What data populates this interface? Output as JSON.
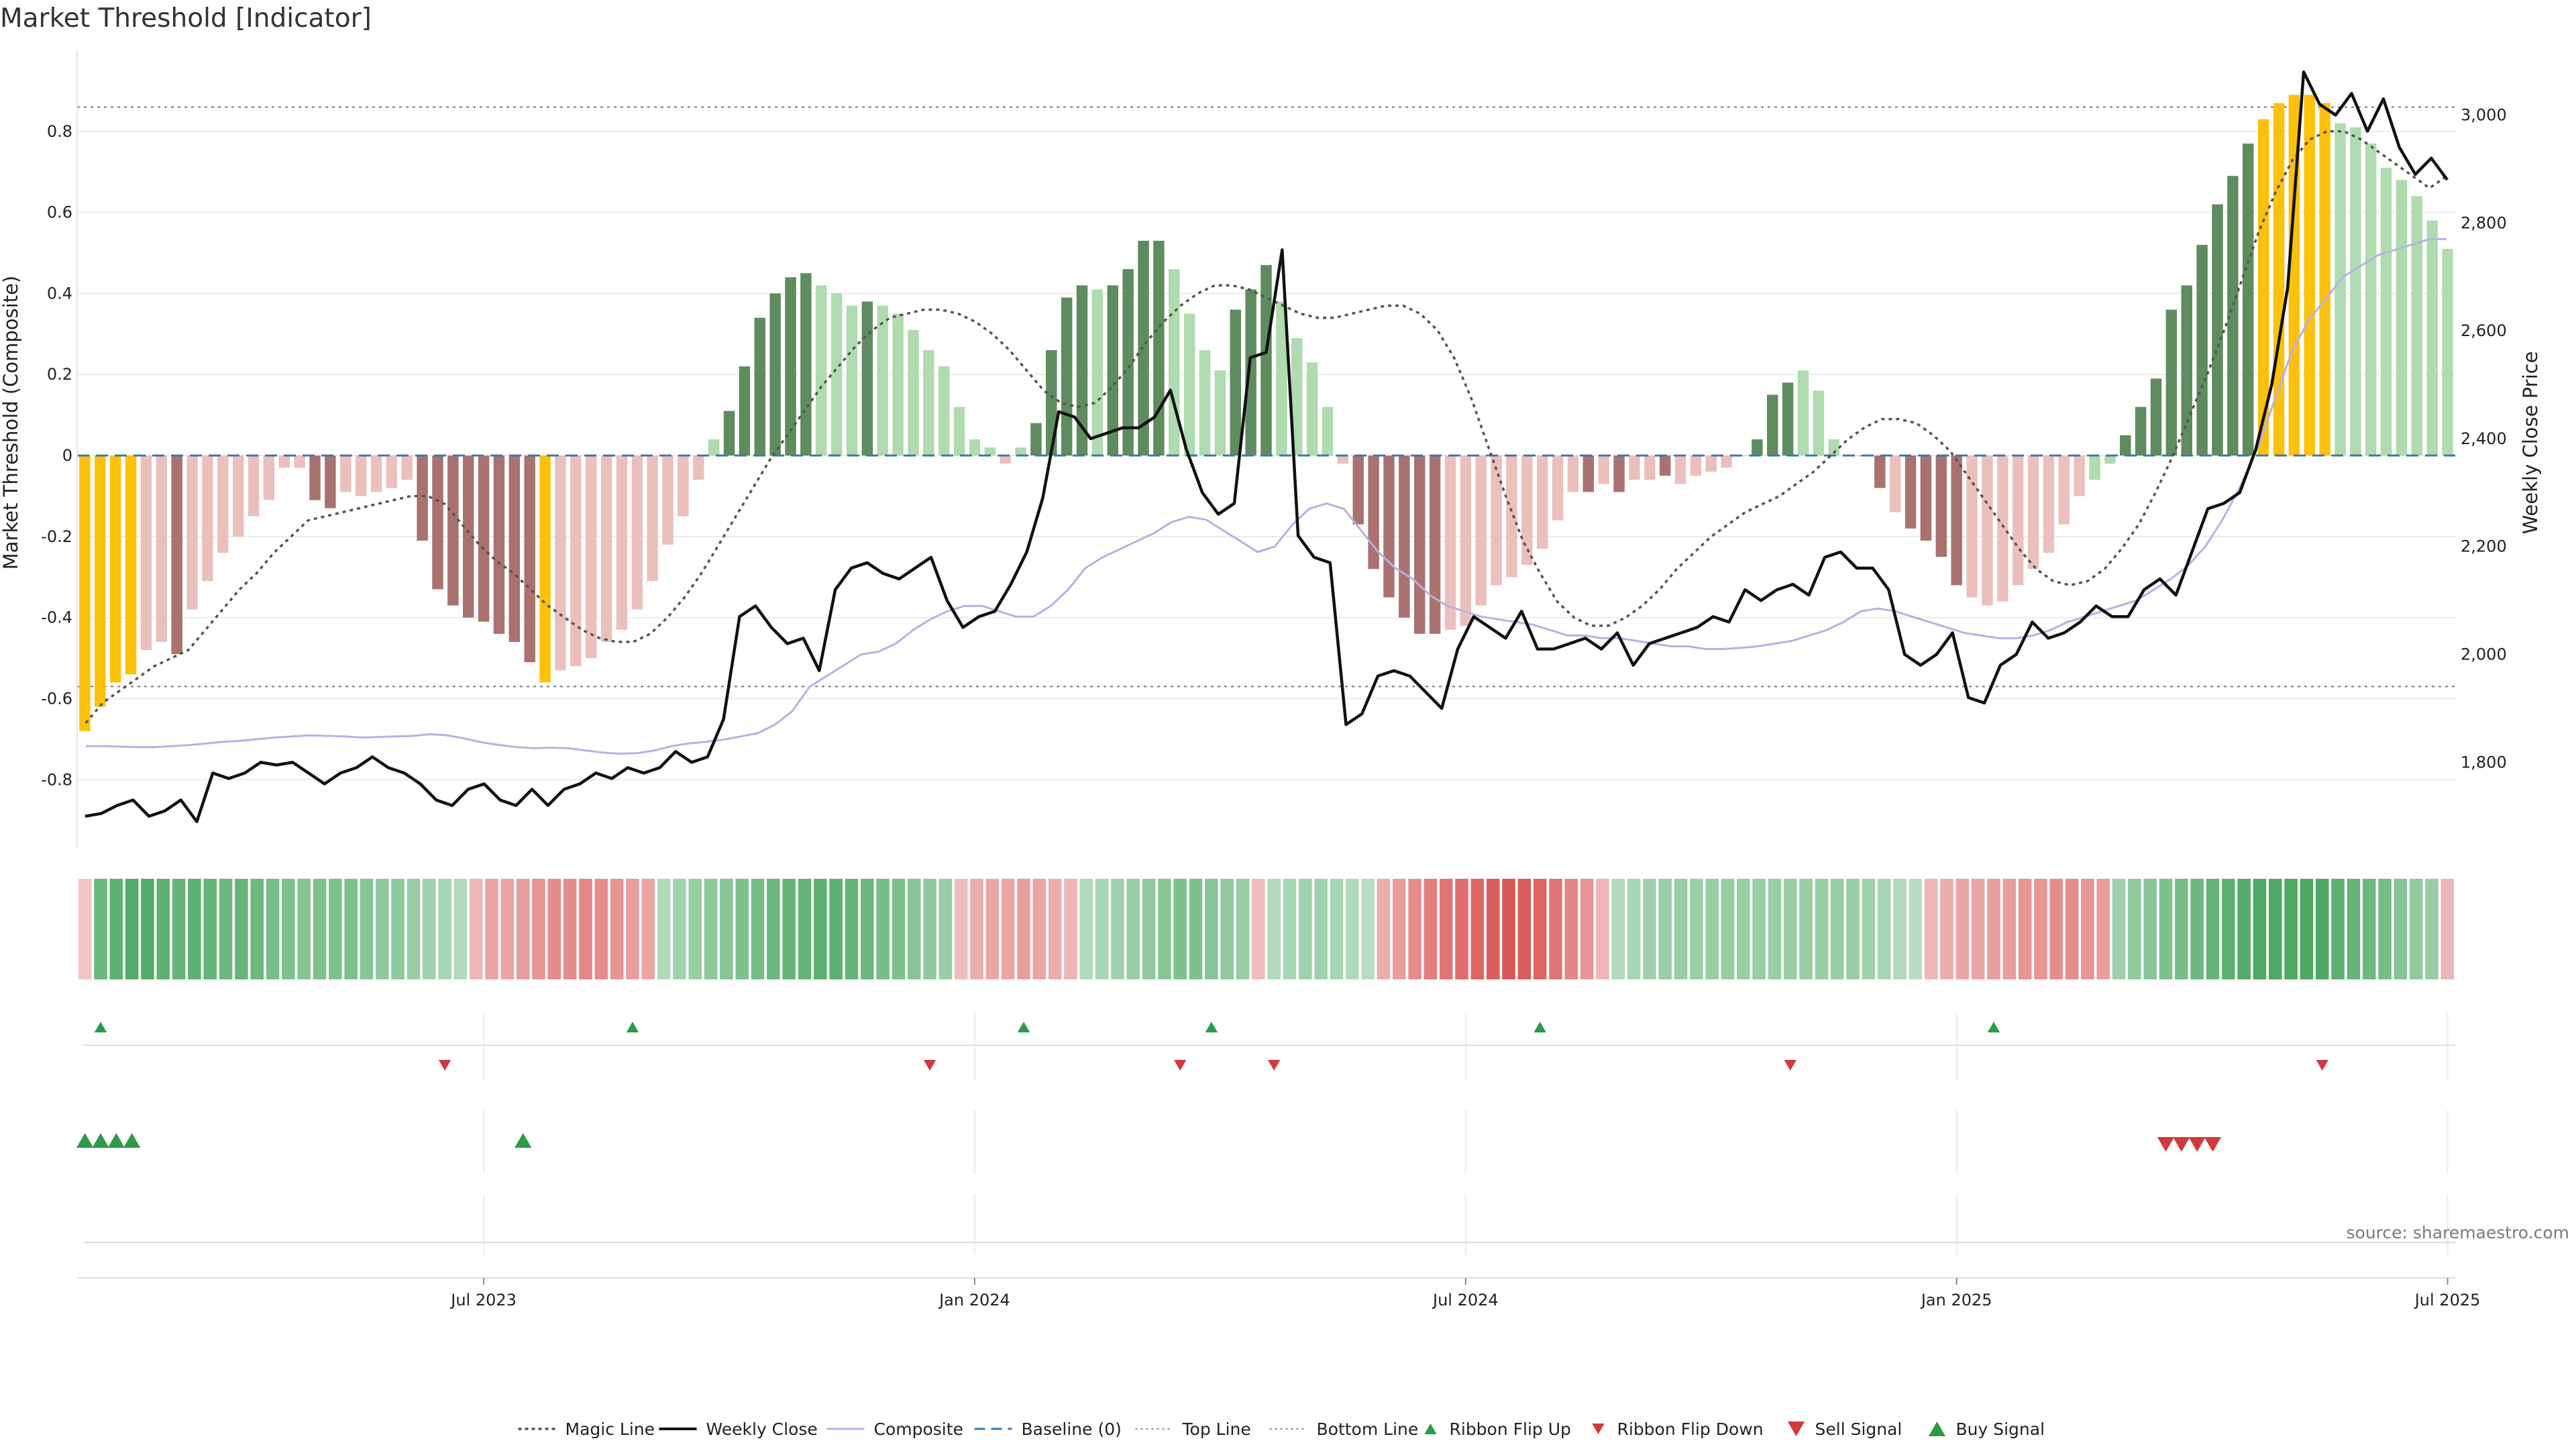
{
  "title": "Market Threshold [Indicator]",
  "source": "source: sharemaestro.com",
  "colors": {
    "strong_positive": "#5e8c5e",
    "weak_positive": "#afdbae",
    "strong_negative": "#a9726f",
    "weak_negative": "#ebc0bc",
    "extreme": "#fcc10a",
    "weekly_close": "#111111",
    "composite": "#b7b1e3",
    "magic": "#555555",
    "baseline": "#3f78a7",
    "buy": "#2e9a48",
    "sell": "#d23a3a",
    "grid": "#ececec"
  },
  "legend": [
    {
      "label": "Magic Line",
      "style": "dotted-line"
    },
    {
      "label": "Weekly Close",
      "style": "solid-line"
    },
    {
      "label": "Composite",
      "style": "thin-line"
    },
    {
      "label": "Baseline (0)",
      "style": "dashed-line"
    },
    {
      "label": "Top Line",
      "style": "fine-dotted-line"
    },
    {
      "label": "Bottom Line",
      "style": "fine-dotted-line"
    },
    {
      "label": "Ribbon Flip Up",
      "style": "triangle-up-small"
    },
    {
      "label": "Ribbon Flip Down",
      "style": "triangle-down-small"
    },
    {
      "label": "Sell Signal",
      "style": "triangle-down"
    },
    {
      "label": "Buy Signal",
      "style": "triangle-up"
    }
  ],
  "chart_data": {
    "type": "bar",
    "title": "Market Threshold [Indicator]",
    "ylabel": "Market Threshold (Composite)",
    "y2label": "Weekly Close Price",
    "ylim": [
      -0.97,
      1.0
    ],
    "y2lim": [
      1640,
      3120
    ],
    "yticks": [
      -0.8,
      -0.6,
      -0.4,
      -0.2,
      0,
      0.2,
      0.4,
      0.6,
      0.8
    ],
    "y2ticks": [
      1800,
      2000,
      2200,
      2400,
      2600,
      2800,
      3000
    ],
    "y2tick_labels": [
      "1,800",
      "2,000",
      "2,200",
      "2,400",
      "2,600",
      "2,800",
      "3,000"
    ],
    "grid": true,
    "top_line": 0.86,
    "bottom_line": -0.57,
    "baseline": 0,
    "x_ticks": [
      {
        "label": "Jul 2023",
        "week": 26
      },
      {
        "label": "Jan 2024",
        "week": 58
      },
      {
        "label": "Jul 2024",
        "week": 90
      },
      {
        "label": "Jan 2025",
        "week": 122
      },
      {
        "label": "Jul 2025",
        "week": 154
      }
    ],
    "composite_bars": [
      -0.68,
      -0.62,
      -0.56,
      -0.54,
      -0.48,
      -0.46,
      -0.49,
      -0.38,
      -0.31,
      -0.24,
      -0.2,
      -0.15,
      -0.11,
      -0.03,
      -0.03,
      -0.11,
      -0.13,
      -0.09,
      -0.1,
      -0.09,
      -0.08,
      -0.06,
      -0.21,
      -0.33,
      -0.37,
      -0.4,
      -0.41,
      -0.44,
      -0.46,
      -0.51,
      -0.56,
      -0.53,
      -0.52,
      -0.5,
      -0.46,
      -0.43,
      -0.38,
      -0.31,
      -0.22,
      -0.15,
      -0.06,
      0.04,
      0.11,
      0.22,
      0.34,
      0.4,
      0.44,
      0.45,
      0.42,
      0.4,
      0.37,
      0.38,
      0.37,
      0.35,
      0.31,
      0.26,
      0.22,
      0.12,
      0.04,
      0.02,
      -0.02,
      0.02,
      0.08,
      0.26,
      0.39,
      0.42,
      0.41,
      0.42,
      0.46,
      0.53,
      0.53,
      0.46,
      0.35,
      0.26,
      0.21,
      0.36,
      0.41,
      0.47,
      0.38,
      0.29,
      0.23,
      0.12,
      -0.02,
      -0.17,
      -0.28,
      -0.35,
      -0.4,
      -0.44,
      -0.44,
      -0.43,
      -0.42,
      -0.37,
      -0.32,
      -0.3,
      -0.27,
      -0.23,
      -0.16,
      -0.09,
      -0.09,
      -0.07,
      -0.09,
      -0.06,
      -0.06,
      -0.05,
      -0.07,
      -0.05,
      -0.04,
      -0.03,
      0.0,
      0.04,
      0.15,
      0.18,
      0.21,
      0.16,
      0.04,
      0.0,
      0.0,
      -0.08,
      -0.14,
      -0.18,
      -0.21,
      -0.25,
      -0.32,
      -0.35,
      -0.37,
      -0.36,
      -0.32,
      -0.28,
      -0.24,
      -0.17,
      -0.1,
      -0.06,
      -0.02,
      0.05,
      0.12,
      0.19,
      0.36,
      0.42,
      0.52,
      0.62,
      0.69,
      0.77,
      0.83,
      0.87,
      0.89,
      0.89,
      0.87,
      0.82,
      0.81,
      0.77,
      0.71,
      0.68,
      0.64,
      0.58,
      0.51
    ],
    "bar_categories": [
      "strong_negative:extreme",
      "strong_negative:extreme",
      "strong_negative:extreme",
      "strong_negative:extreme",
      "weak_negative",
      "weak_negative",
      "strong_negative",
      "weak_negative",
      "weak_negative",
      "weak_negative",
      "weak_negative",
      "weak_negative",
      "weak_negative",
      "weak_negative",
      "weak_negative",
      "strong_negative",
      "strong_negative",
      "weak_negative",
      "weak_negative",
      "weak_negative",
      "weak_negative",
      "weak_negative",
      "strong_negative",
      "strong_negative",
      "strong_negative",
      "strong_negative",
      "strong_negative",
      "strong_negative",
      "strong_negative",
      "strong_negative",
      "strong_negative:extreme",
      "weak_negative",
      "weak_negative",
      "weak_negative",
      "weak_negative",
      "weak_negative",
      "weak_negative",
      "weak_negative",
      "weak_negative",
      "weak_negative",
      "weak_negative",
      "weak_positive",
      "strong_positive",
      "strong_positive",
      "strong_positive",
      "strong_positive",
      "strong_positive",
      "strong_positive",
      "weak_positive",
      "weak_positive",
      "weak_positive",
      "strong_positive",
      "weak_positive",
      "weak_positive",
      "weak_positive",
      "weak_positive",
      "weak_positive",
      "weak_positive",
      "weak_positive",
      "weak_positive",
      "weak_negative",
      "weak_positive",
      "strong_positive",
      "strong_positive",
      "strong_positive",
      "strong_positive",
      "weak_positive",
      "strong_positive",
      "strong_positive",
      "strong_positive",
      "strong_positive",
      "weak_positive",
      "weak_positive",
      "weak_positive",
      "weak_positive",
      "strong_positive",
      "strong_positive",
      "strong_positive",
      "weak_positive",
      "weak_positive",
      "weak_positive",
      "weak_positive",
      "weak_negative",
      "strong_negative",
      "strong_negative",
      "strong_negative",
      "strong_negative",
      "strong_negative",
      "strong_negative",
      "weak_negative",
      "weak_negative",
      "weak_negative",
      "weak_negative",
      "weak_negative",
      "weak_negative",
      "weak_negative",
      "weak_negative",
      "weak_negative",
      "strong_negative",
      "weak_negative",
      "strong_negative",
      "weak_negative",
      "weak_negative",
      "strong_negative",
      "weak_negative",
      "weak_negative",
      "weak_negative",
      "weak_negative",
      "weak_positive",
      "strong_positive",
      "strong_positive",
      "strong_positive",
      "weak_positive",
      "weak_positive",
      "weak_positive",
      "weak_negative",
      "strong_negative",
      "strong_negative",
      "weak_negative",
      "strong_negative",
      "strong_negative",
      "strong_negative",
      "strong_negative",
      "weak_negative",
      "weak_negative",
      "weak_negative",
      "weak_negative",
      "weak_negative",
      "weak_negative",
      "weak_negative",
      "weak_negative",
      "weak_positive",
      "weak_positive",
      "strong_positive",
      "strong_positive",
      "strong_positive",
      "strong_positive",
      "strong_positive",
      "strong_positive",
      "strong_positive",
      "strong_positive",
      "strong_positive",
      "strong_positive:extreme",
      "strong_positive:extreme",
      "strong_positive:extreme",
      "strong_positive:extreme",
      "strong_positive:extreme",
      "weak_positive",
      "weak_positive",
      "weak_positive",
      "weak_positive",
      "weak_positive",
      "weak_positive",
      "weak_positive"
    ],
    "magic_line": [
      -0.66,
      -0.61,
      -0.58,
      -0.55,
      -0.52,
      -0.5,
      -0.48,
      -0.43,
      -0.38,
      -0.33,
      -0.29,
      -0.24,
      -0.2,
      -0.16,
      -0.15,
      -0.14,
      -0.13,
      -0.12,
      -0.11,
      -0.1,
      -0.1,
      -0.12,
      -0.17,
      -0.22,
      -0.26,
      -0.29,
      -0.33,
      -0.37,
      -0.4,
      -0.43,
      -0.45,
      -0.46,
      -0.46,
      -0.44,
      -0.4,
      -0.35,
      -0.29,
      -0.22,
      -0.15,
      -0.08,
      -0.01,
      0.05,
      0.11,
      0.17,
      0.22,
      0.27,
      0.31,
      0.34,
      0.35,
      0.36,
      0.36,
      0.35,
      0.33,
      0.3,
      0.26,
      0.21,
      0.16,
      0.13,
      0.12,
      0.13,
      0.17,
      0.22,
      0.28,
      0.33,
      0.37,
      0.4,
      0.42,
      0.42,
      0.41,
      0.39,
      0.37,
      0.35,
      0.34,
      0.34,
      0.35,
      0.36,
      0.37,
      0.37,
      0.35,
      0.31,
      0.24,
      0.14,
      0.02,
      -0.1,
      -0.21,
      -0.29,
      -0.36,
      -0.4,
      -0.42,
      -0.42,
      -0.4,
      -0.37,
      -0.33,
      -0.28,
      -0.24,
      -0.2,
      -0.17,
      -0.14,
      -0.12,
      -0.1,
      -0.07,
      -0.04,
      0.0,
      0.04,
      0.07,
      0.09,
      0.09,
      0.08,
      0.05,
      0.01,
      -0.05,
      -0.11,
      -0.17,
      -0.23,
      -0.28,
      -0.31,
      -0.32,
      -0.31,
      -0.28,
      -0.23,
      -0.17,
      -0.09,
      0.0,
      0.1,
      0.2,
      0.31,
      0.43,
      0.55,
      0.65,
      0.73,
      0.78,
      0.8,
      0.8,
      0.78,
      0.75,
      0.72,
      0.69,
      0.66,
      0.69
    ],
    "weekly_close": [
      1700,
      1705,
      1720,
      1730,
      1700,
      1710,
      1730,
      1690,
      1780,
      1770,
      1780,
      1800,
      1795,
      1800,
      1780,
      1760,
      1780,
      1790,
      1810,
      1790,
      1780,
      1760,
      1730,
      1720,
      1750,
      1760,
      1730,
      1720,
      1750,
      1720,
      1750,
      1760,
      1780,
      1770,
      1790,
      1780,
      1790,
      1820,
      1800,
      1810,
      1880,
      2070,
      2090,
      2050,
      2020,
      2030,
      1970,
      2120,
      2160,
      2170,
      2150,
      2140,
      2160,
      2180,
      2100,
      2050,
      2070,
      2080,
      2130,
      2190,
      2290,
      2450,
      2440,
      2400,
      2410,
      2420,
      2420,
      2440,
      2490,
      2380,
      2300,
      2260,
      2280,
      2550,
      2560,
      2750,
      2220,
      2180,
      2170,
      1870,
      1890,
      1960,
      1970,
      1960,
      1930,
      1900,
      2010,
      2070,
      2050,
      2030,
      2080,
      2010,
      2010,
      2020,
      2030,
      2010,
      2040,
      1980,
      2020,
      2030,
      2040,
      2050,
      2070,
      2060,
      2120,
      2100,
      2120,
      2130,
      2110,
      2180,
      2190,
      2160,
      2160,
      2120,
      2000,
      1980,
      2000,
      2040,
      1920,
      1910,
      1980,
      2000,
      2060,
      2030,
      2040,
      2060,
      2090,
      2070,
      2070,
      2120,
      2140,
      2110,
      2190,
      2270,
      2280,
      2300,
      2380,
      2500,
      2680,
      3080,
      3020,
      3000,
      3040,
      2970,
      3030,
      2940,
      2890,
      2920,
      2880
    ],
    "composite_line": [
      1830,
      1830,
      1829,
      1828,
      1828,
      1830,
      1832,
      1835,
      1838,
      1840,
      1843,
      1846,
      1848,
      1850,
      1849,
      1848,
      1846,
      1847,
      1848,
      1849,
      1852,
      1850,
      1844,
      1837,
      1832,
      1828,
      1826,
      1827,
      1826,
      1822,
      1818,
      1816,
      1817,
      1822,
      1830,
      1835,
      1838,
      1842,
      1848,
      1854,
      1870,
      1895,
      1940,
      1960,
      1980,
      2000,
      2005,
      2020,
      2045,
      2065,
      2080,
      2090,
      2090,
      2080,
      2070,
      2070,
      2090,
      2120,
      2160,
      2180,
      2195,
      2210,
      2225,
      2245,
      2255,
      2250,
      2230,
      2210,
      2190,
      2200,
      2240,
      2270,
      2280,
      2270,
      2230,
      2190,
      2160,
      2140,
      2110,
      2090,
      2080,
      2070,
      2065,
      2060,
      2055,
      2045,
      2035,
      2035,
      2030,
      2030,
      2025,
      2020,
      2015,
      2015,
      2010,
      2010,
      2012,
      2015,
      2020,
      2025,
      2035,
      2045,
      2060,
      2080,
      2085,
      2080,
      2070,
      2060,
      2050,
      2040,
      2035,
      2030,
      2030,
      2035,
      2045,
      2060,
      2070,
      2080,
      2090,
      2100,
      2120,
      2140,
      2165,
      2200,
      2250,
      2310,
      2380,
      2470,
      2560,
      2620,
      2660,
      2700,
      2720,
      2740,
      2750,
      2760,
      2770,
      2770
    ],
    "ribbon_strength": [
      -0.1,
      0.6,
      0.7,
      0.75,
      0.75,
      0.7,
      0.65,
      0.7,
      0.65,
      0.6,
      0.65,
      0.6,
      0.55,
      0.5,
      0.45,
      0.5,
      0.5,
      0.5,
      0.45,
      0.4,
      0.4,
      0.35,
      0.3,
      0.25,
      0.2,
      -0.2,
      -0.3,
      -0.3,
      -0.35,
      -0.4,
      -0.45,
      -0.45,
      -0.5,
      -0.45,
      -0.4,
      -0.35,
      -0.3,
      0.2,
      0.3,
      0.35,
      0.4,
      0.45,
      0.5,
      0.55,
      0.6,
      0.65,
      0.65,
      0.7,
      0.7,
      0.65,
      0.6,
      0.55,
      0.5,
      0.45,
      0.4,
      0.35,
      -0.15,
      -0.25,
      -0.3,
      -0.3,
      -0.35,
      -0.3,
      -0.25,
      -0.2,
      0.2,
      0.25,
      0.3,
      0.35,
      0.4,
      0.45,
      0.5,
      0.5,
      0.45,
      0.4,
      0.35,
      -0.15,
      0.2,
      0.25,
      0.3,
      0.3,
      0.25,
      0.2,
      0.15,
      -0.25,
      -0.35,
      -0.45,
      -0.55,
      -0.6,
      -0.65,
      -0.7,
      -0.75,
      -0.8,
      -0.75,
      -0.7,
      -0.6,
      -0.5,
      -0.4,
      -0.2,
      0.2,
      0.25,
      0.3,
      0.35,
      0.35,
      0.35,
      0.35,
      0.35,
      0.35,
      0.35,
      0.35,
      0.35,
      0.35,
      0.35,
      0.35,
      0.35,
      0.3,
      0.25,
      0.2,
      0.15,
      -0.2,
      -0.25,
      -0.3,
      -0.3,
      -0.35,
      -0.35,
      -0.4,
      -0.4,
      -0.45,
      -0.45,
      -0.4,
      -0.35,
      0.3,
      0.4,
      0.45,
      0.5,
      0.55,
      0.6,
      0.65,
      0.7,
      0.75,
      0.8,
      0.85,
      0.9,
      0.85,
      0.8,
      0.7,
      0.65,
      0.6,
      0.55,
      0.45,
      0.4,
      0.35,
      -0.2
    ],
    "ribbon_flip_up_weeks": [
      1,
      35,
      60,
      72,
      93,
      122
    ],
    "ribbon_flip_down_weeks": [
      23,
      54,
      70,
      76,
      109,
      143
    ],
    "buy_signal_weeks": [
      0,
      1,
      2,
      3,
      28
    ],
    "sell_signal_weeks": [
      133,
      134,
      135,
      136
    ]
  }
}
